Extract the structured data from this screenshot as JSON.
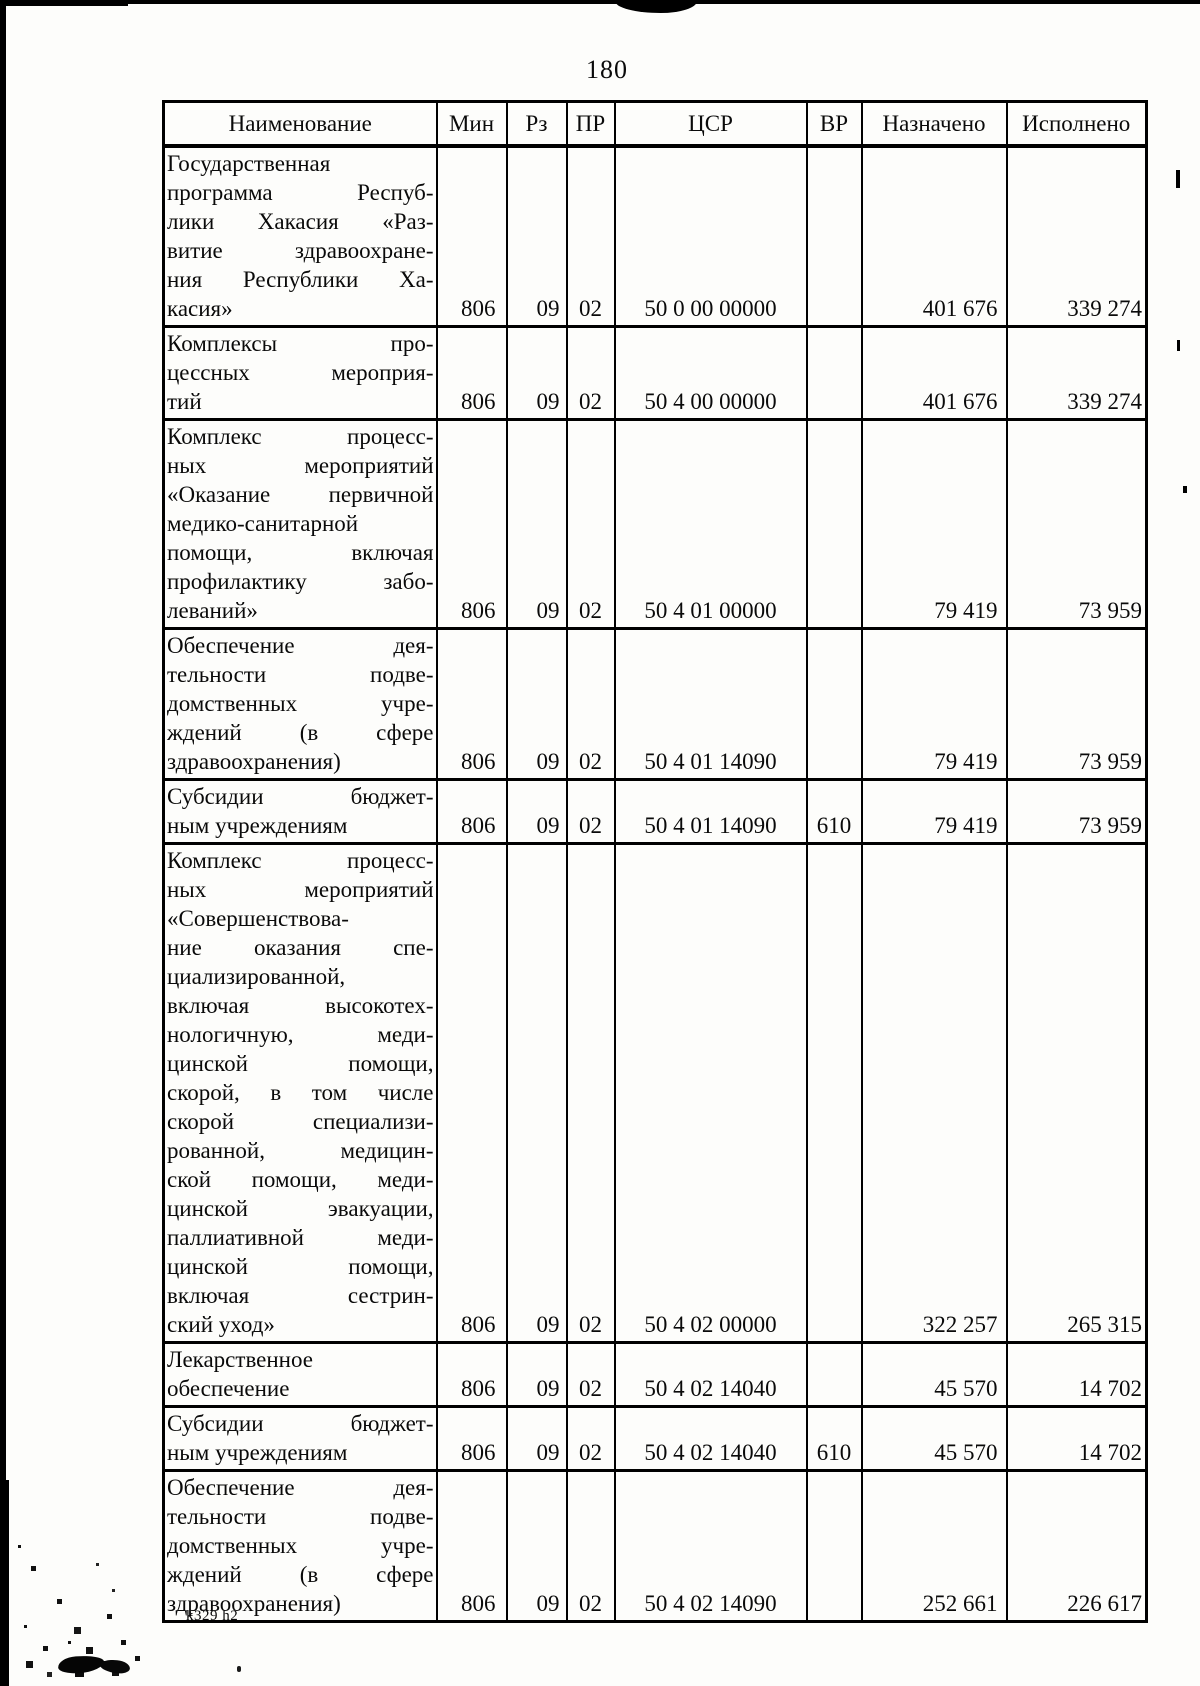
{
  "page": {
    "number": "180",
    "footer": "k329 h2"
  },
  "table": {
    "columns": [
      "Наименование",
      "Мин",
      "Рз",
      "ПР",
      "ЦСР",
      "ВР",
      "Назначено",
      "Исполнено"
    ],
    "rows": [
      {
        "name_lines": [
          "Государственная",
          "программа Респуб-",
          "лики Хакасия «Раз-",
          "витие здравоохране-",
          "ния Республики Ха-",
          "касия»"
        ],
        "min": "806",
        "rz": "09",
        "pr": "02",
        "csr": "50 0 00 00000",
        "vr": "",
        "assigned": "401 676",
        "executed": "339 274"
      },
      {
        "name_lines": [
          "Комплексы про-",
          "цессных мероприя-",
          "тий"
        ],
        "min": "806",
        "rz": "09",
        "pr": "02",
        "csr": "50 4 00 00000",
        "vr": "",
        "assigned": "401 676",
        "executed": "339 274"
      },
      {
        "name_lines": [
          "Комплекс процесс-",
          "ных мероприятий",
          "«Оказание первичной",
          "медико-санитарной",
          "помощи, включая",
          "профилактику забо-",
          "леваний»"
        ],
        "min": "806",
        "rz": "09",
        "pr": "02",
        "csr": "50 4 01 00000",
        "vr": "",
        "assigned": "79 419",
        "executed": "73 959"
      },
      {
        "name_lines": [
          "Обеспечение дея-",
          "тельности подве-",
          "домственных учре-",
          "ждений (в сфере",
          "здравоохранения)"
        ],
        "min": "806",
        "rz": "09",
        "pr": "02",
        "csr": "50 4 01 14090",
        "vr": "",
        "assigned": "79 419",
        "executed": "73 959"
      },
      {
        "name_lines": [
          "Субсидии бюджет-",
          "ным учреждениям"
        ],
        "min": "806",
        "rz": "09",
        "pr": "02",
        "csr": "50 4 01 14090",
        "vr": "610",
        "assigned": "79 419",
        "executed": "73 959"
      },
      {
        "name_lines": [
          "Комплекс процесс-",
          "ных мероприятий",
          "«Совершенствова-",
          "ние оказания спе-",
          "циализированной,",
          "включая высокотех-",
          "нологичную, меди-",
          "цинской помощи,",
          "скорой, в том числе",
          "скорой специализи-",
          "рованной, медицин-",
          "ской помощи, меди-",
          "цинской эвакуации,",
          "паллиативной меди-",
          "цинской помощи,",
          "включая сестрин-",
          "ский уход»"
        ],
        "min": "806",
        "rz": "09",
        "pr": "02",
        "csr": "50 4 02 00000",
        "vr": "",
        "assigned": "322 257",
        "executed": "265 315"
      },
      {
        "name_lines": [
          "Лекарственное",
          "обеспечение"
        ],
        "min": "806",
        "rz": "09",
        "pr": "02",
        "csr": "50 4 02 14040",
        "vr": "",
        "assigned": "45 570",
        "executed": "14 702"
      },
      {
        "name_lines": [
          "Субсидии бюджет-",
          "ным учреждениям"
        ],
        "min": "806",
        "rz": "09",
        "pr": "02",
        "csr": "50 4 02 14040",
        "vr": "610",
        "assigned": "45 570",
        "executed": "14 702"
      },
      {
        "name_lines": [
          "Обеспечение дея-",
          "тельности подве-",
          "домственных учре-",
          "ждений (в сфере",
          "здравоохранения)"
        ],
        "min": "806",
        "rz": "09",
        "pr": "02",
        "csr": "50 4 02 14090",
        "vr": "",
        "assigned": "252 661",
        "executed": "226 617"
      }
    ]
  }
}
